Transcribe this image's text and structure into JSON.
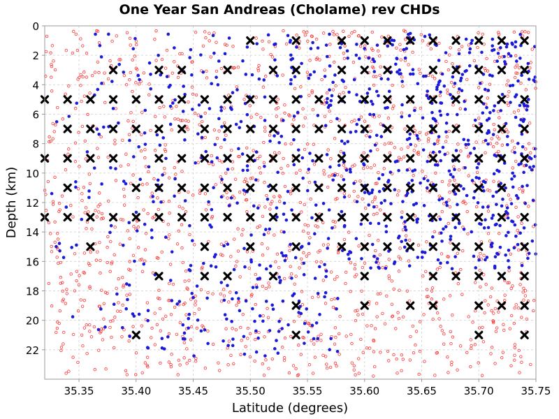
{
  "chart_data": {
    "type": "scatter",
    "title": "One Year San Andreas (Cholame) rev CHDs",
    "xlabel": "Latitude (degrees)",
    "ylabel": "Depth (km)",
    "xlim": [
      35.32,
      35.75
    ],
    "ylim": [
      0,
      24
    ],
    "y_inverted": true,
    "x_ticks": [
      "35.35",
      "35.40",
      "35.45",
      "35.50",
      "35.55",
      "35.60",
      "35.65",
      "35.70",
      "35.75"
    ],
    "y_ticks": [
      "0",
      "2",
      "4",
      "6",
      "8",
      "10",
      "12",
      "14",
      "16",
      "18",
      "20",
      "22"
    ],
    "grid": true,
    "colors": {
      "open_circles": "#ff3333",
      "filled_dots": "#1a1ad8",
      "markers": "#000000"
    },
    "x_markers": {
      "note": "depth (km) : latitudes of black X markers",
      "rows": [
        {
          "depth": 1,
          "lat": [
            35.5,
            35.54,
            35.58,
            35.6,
            35.62,
            35.64,
            35.66,
            35.68,
            35.7,
            35.72,
            35.74
          ]
        },
        {
          "depth": 3,
          "lat": [
            35.38,
            35.42,
            35.44,
            35.48,
            35.52,
            35.54,
            35.58,
            35.6,
            35.62,
            35.66,
            35.68,
            35.7,
            35.72,
            35.74
          ]
        },
        {
          "depth": 5,
          "lat": [
            35.32,
            35.34,
            35.36,
            35.38,
            35.4,
            35.42,
            35.44,
            35.46,
            35.48,
            35.5,
            35.52,
            35.54,
            35.56,
            35.58,
            35.6,
            35.62,
            35.64,
            35.66,
            35.68,
            35.7,
            35.72,
            35.74
          ]
        },
        {
          "depth": 7,
          "lat": [
            35.34,
            35.36,
            35.38,
            35.4,
            35.42,
            35.44,
            35.46,
            35.48,
            35.5,
            35.52,
            35.54,
            35.56,
            35.58,
            35.6,
            35.62,
            35.64,
            35.66,
            35.68,
            35.7,
            35.72,
            35.74
          ]
        },
        {
          "depth": 9,
          "lat": [
            35.32,
            35.34,
            35.36,
            35.38,
            35.42,
            35.44,
            35.46,
            35.48,
            35.5,
            35.52,
            35.54,
            35.56,
            35.58,
            35.6,
            35.62,
            35.64,
            35.66,
            35.68,
            35.7,
            35.72,
            35.74
          ]
        },
        {
          "depth": 11,
          "lat": [
            35.34,
            35.4,
            35.42,
            35.44,
            35.46,
            35.48,
            35.5,
            35.52,
            35.54,
            35.56,
            35.58,
            35.6,
            35.62,
            35.64,
            35.66,
            35.68,
            35.7,
            35.72
          ]
        },
        {
          "depth": 13,
          "lat": [
            35.32,
            35.34,
            35.36,
            35.38,
            35.4,
            35.42,
            35.44,
            35.46,
            35.48,
            35.5,
            35.52,
            35.54,
            35.56,
            35.58,
            35.6,
            35.62,
            35.64,
            35.66,
            35.68,
            35.7,
            35.72,
            35.74
          ]
        },
        {
          "depth": 15,
          "lat": [
            35.36,
            35.46,
            35.5,
            35.54,
            35.58,
            35.6,
            35.62,
            35.64,
            35.66,
            35.68,
            35.7,
            35.74
          ]
        },
        {
          "depth": 17,
          "lat": [
            35.42,
            35.46,
            35.48,
            35.52,
            35.6,
            35.66,
            35.68,
            35.7,
            35.72,
            35.74
          ]
        },
        {
          "depth": 19,
          "lat": [
            35.54,
            35.6,
            35.64,
            35.66,
            35.7,
            35.72,
            35.74
          ]
        },
        {
          "depth": 21,
          "lat": [
            35.4,
            35.54,
            35.7,
            35.74
          ]
        }
      ]
    }
  }
}
